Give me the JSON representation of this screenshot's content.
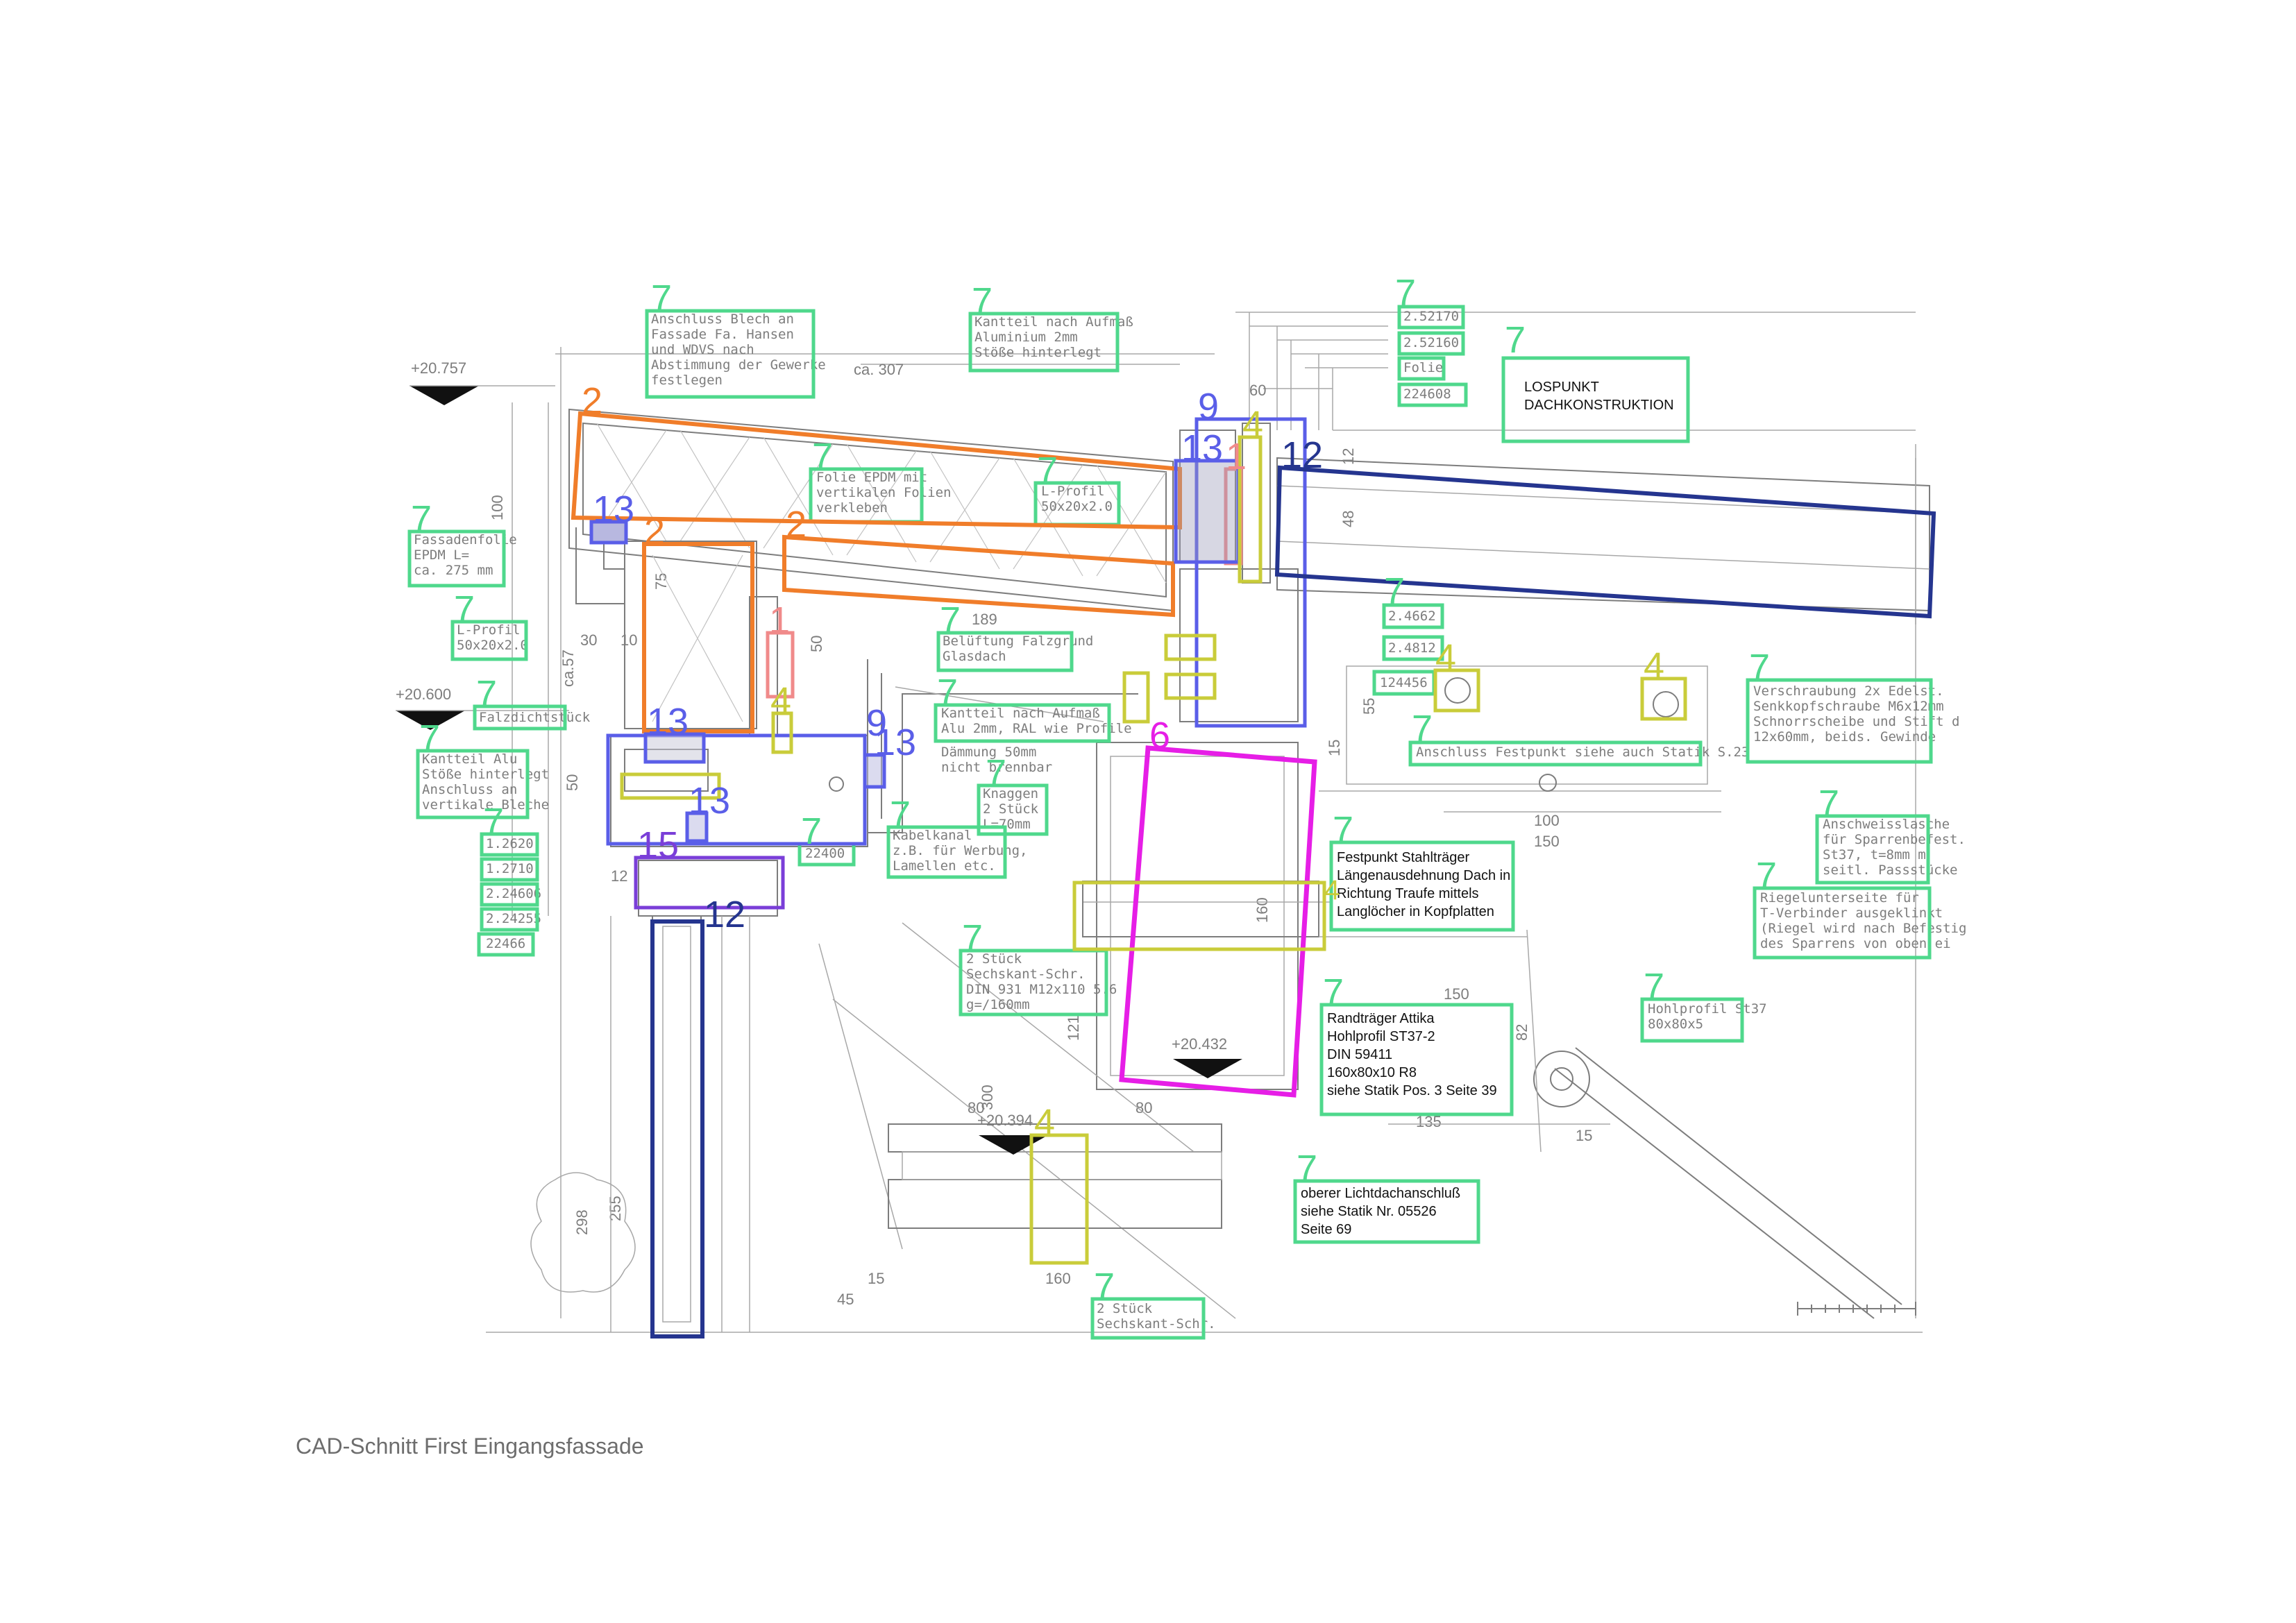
{
  "caption": "CAD-Schnitt First Eingangsfassade",
  "colors": {
    "class1": "#f08a8a",
    "class2": "#f07d2a",
    "class4": "#c9cc3a",
    "class6": "#e61ee6",
    "class7": "#4fd88c",
    "class9": "#5a5ee8",
    "class12": "#25358f",
    "class13": "#5a5ee8",
    "class15": "#7a3ed8"
  },
  "levels": {
    "l1": "+20.757",
    "l2": "+20.600",
    "l3": "+20.432",
    "l4": "+20.394"
  },
  "cad_text": {
    "ca307": "ca. 307",
    "d100": "100",
    "d30": "30",
    "d10": "10",
    "d50a": "50",
    "d189": "189",
    "d60": "60",
    "d12": "12",
    "d48": "48",
    "d55": "55",
    "d15": "15",
    "d100b": "100",
    "d150": "150",
    "d150b": "150",
    "d82": "82",
    "d135": "135",
    "d15b": "15",
    "d121": "121",
    "d300": "300",
    "d80": "80",
    "d80b": "80",
    "d160": "160",
    "d15c": "15",
    "d45": "45",
    "d298": "298",
    "d255": "255",
    "d12b": "12",
    "d160b": "160",
    "ca57": "ca.57",
    "d50b": "50",
    "d75": "75"
  },
  "notes": {
    "n_blech": [
      "Anschluss Blech an",
      "Fassade Fa. Hansen",
      "und WDVS nach",
      "Abstimmung der Gewerke",
      "festlegen"
    ],
    "n_kantteil_alu": [
      "Kantteil nach Aufmaß",
      "Aluminium 2mm",
      "Stöße hinterlegt"
    ],
    "n_codes_top": [
      "2.52170",
      "2.52160",
      "Folie",
      "224608"
    ],
    "n_lospunkt": [
      "LOSPUNKT",
      "DACHKONSTRUKTION"
    ],
    "n_folie_epdm": [
      "Folie EPDM mit",
      "vertikalen Folien",
      "verkleben"
    ],
    "n_lprofil_top": [
      "L-Profil",
      "50x20x2.0"
    ],
    "n_fassadenfolie": [
      "Fassadenfolie",
      "EPDM L=",
      "ca. 275 mm"
    ],
    "n_lprofil_left": [
      "L-Profil",
      "50x20x2.0"
    ],
    "n_belueftung": [
      "Belüftung Falzgrund",
      "Glasdach"
    ],
    "n_falzdicht": [
      "Falzdichtstück"
    ],
    "n_kantteil_left": [
      "Kantteil Alu",
      "Stöße hinterlegt",
      "Anschluss an",
      "vertikale Bleche"
    ],
    "n_kantteil_mid": [
      "Kantteil nach Aufmaß",
      "Alu 2mm, RAL wie Profile"
    ],
    "n_daemmung": [
      "Dämmung 50mm",
      "nicht brennbar"
    ],
    "n_knaggen": [
      "Knaggen",
      "2 Stück",
      "L=70mm"
    ],
    "n_kabelkanal": [
      "Kabelkanal",
      "z.B. für Werbung,",
      "Lamellen etc."
    ],
    "n_22400": [
      "22400"
    ],
    "n_codes_left": [
      "1.2620",
      "1.2710",
      "2.24606",
      "2.24255",
      "22466"
    ],
    "n_codes_right": [
      "2.4662",
      "2.4812",
      "124456"
    ],
    "n_verschraubung": [
      "Verschraubung 2x Edelst.",
      "Senkkopfschraube M6x12mm",
      "Schnorrscheibe und Stift d",
      "12x60mm, beids. Gewinde"
    ],
    "n_anschluss_fest": [
      "Anschluss Festpunkt siehe auch Statik S.23"
    ],
    "n_anschweiss": [
      "Anschweisslasche",
      "für Sparrenbefest.",
      "St37, t=8mm m",
      "seitl. Passstücke"
    ],
    "n_riegel": [
      "Riegelunterseite für",
      "T-Verbinder ausgeklinkt",
      "(Riegel wird nach Befestig",
      "des Sparrens von oben ei"
    ],
    "n_festpunkt": [
      "Festpunkt Stahlträger",
      "Längenausdehnung Dach in",
      "Richtung Traufe mittels",
      "Langlöcher in Kopfplatten"
    ],
    "n_sechskant1": [
      "2 Stück",
      "Sechskant-Schr.",
      "DIN 931 M12x110 5.6",
      "g=/160mm"
    ],
    "n_randtraeger": [
      "Randträger Attika",
      "Hohlprofil  ST37-2",
      "DIN 59411",
      "160x80x10 R8",
      "siehe Statik Pos. 3 Seite 39"
    ],
    "n_hohlprofil": [
      "Hohlprofil St37",
      "80x80x5"
    ],
    "n_lichtdach": [
      "oberer Lichtdachanschluß",
      "siehe Statik Nr. 05526",
      "Seite 69"
    ],
    "n_sechskant2": [
      "2 Stück",
      "Sechskant-Schr."
    ]
  },
  "class_labels": {
    "c7_blech": "7",
    "c7_kantteil": "7",
    "c7_codes_top": "7",
    "c7_lospunkt": "7",
    "c7_folie": "7",
    "c7_lprofil_top": "7",
    "c7_fassadenfolie": "7",
    "c7_lprofil_left": "7",
    "c7_belueftung": "7",
    "c7_falzdicht": "7",
    "c7_kantteil_left": "7",
    "c7_kantteil_mid": "7",
    "c7_knaggen": "7",
    "c7_kabelkanal": "7",
    "c7_22400": "7",
    "c7_codes_left": "7",
    "c7_codes_right": "7",
    "c7_verschraubung": "7",
    "c7_anschluss": "7",
    "c7_anschweiss": "7",
    "c7_riegel": "7",
    "c7_festpunkt": "7",
    "c7_sechskant1": "7",
    "c7_randtraeger": "7",
    "c7_hohlprofil": "7",
    "c7_lichtdach": "7",
    "c7_sechskant2": "7",
    "c2_top": "2",
    "c2_left": "2",
    "c2_mid": "2",
    "c1_a": "1",
    "c1_b": "1",
    "c9_top": "9",
    "c9_mid": "9",
    "c12_top": "12",
    "c12_mid": "12",
    "c13_a": "13",
    "c13_b": "13",
    "c13_c": "13",
    "c13_d": "13",
    "c13_e": "13",
    "c4_a": "4",
    "c4_b": "4",
    "c4_c": "4",
    "c4_d": "4",
    "c4_e": "4",
    "c4_f": "4",
    "c6": "6",
    "c15": "15"
  }
}
